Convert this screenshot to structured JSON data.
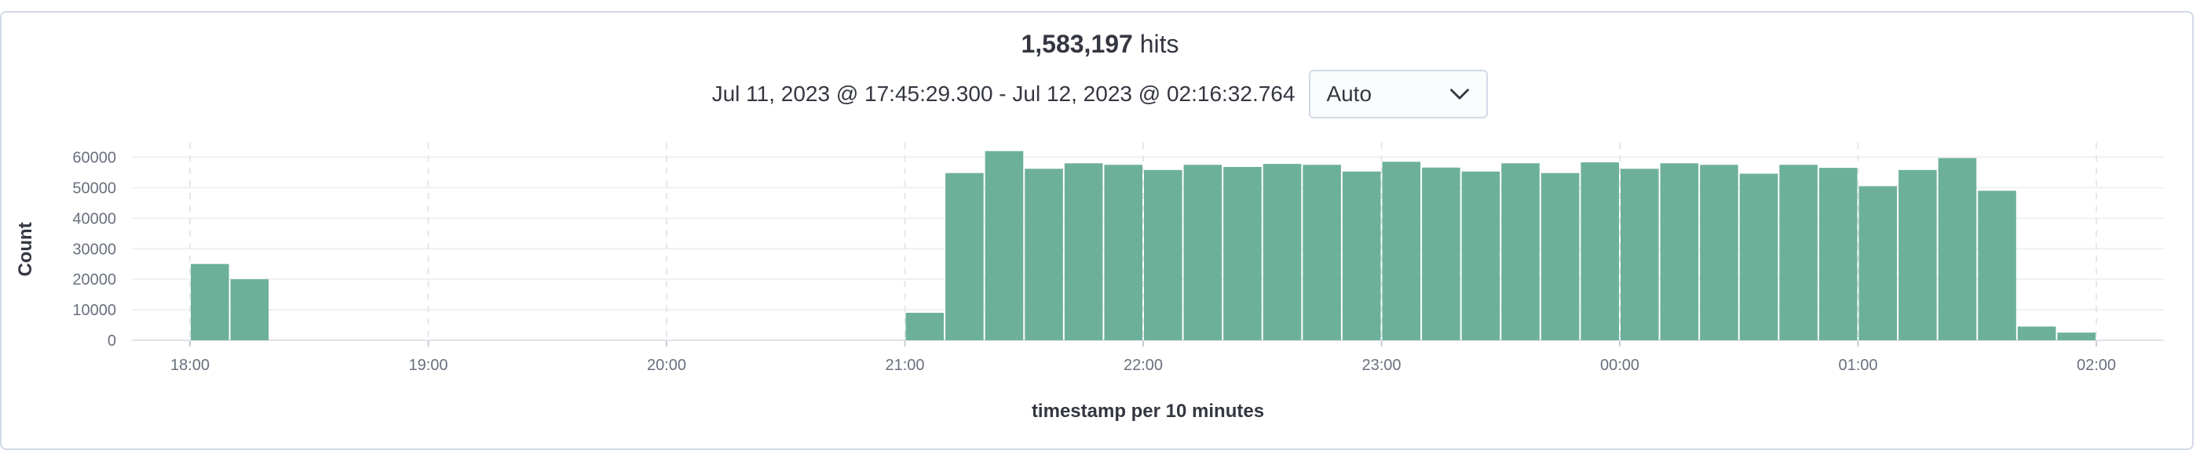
{
  "header": {
    "hits_count": "1,583,197",
    "hits_label": "hits",
    "time_range": "Jul 11, 2023 @ 17:45:29.300 - Jul 12, 2023 @ 02:16:32.764",
    "interval_value": "Auto",
    "interval_icon": "chevron-down-icon"
  },
  "chart_data": {
    "type": "bar",
    "xlabel": "timestamp per 10 minutes",
    "ylabel": "Count",
    "ylim": [
      0,
      60000
    ],
    "y_ticks": [
      0,
      10000,
      20000,
      30000,
      40000,
      50000,
      60000
    ],
    "x_ticks": [
      "18:00",
      "19:00",
      "20:00",
      "21:00",
      "22:00",
      "23:00",
      "00:00",
      "01:00",
      "02:00"
    ],
    "grid": true,
    "bar_color": "#6db09a",
    "bins": [
      {
        "start": "18:00",
        "value": 25000
      },
      {
        "start": "18:10",
        "value": 20000
      },
      {
        "start": "21:00",
        "value": 9000
      },
      {
        "start": "21:10",
        "value": 54800
      },
      {
        "start": "21:20",
        "value": 62000
      },
      {
        "start": "21:30",
        "value": 56200
      },
      {
        "start": "21:40",
        "value": 58000
      },
      {
        "start": "21:50",
        "value": 57500
      },
      {
        "start": "22:00",
        "value": 55800
      },
      {
        "start": "22:10",
        "value": 57500
      },
      {
        "start": "22:20",
        "value": 56800
      },
      {
        "start": "22:30",
        "value": 57800
      },
      {
        "start": "22:40",
        "value": 57500
      },
      {
        "start": "22:50",
        "value": 55300
      },
      {
        "start": "23:00",
        "value": 58500
      },
      {
        "start": "23:10",
        "value": 56600
      },
      {
        "start": "23:20",
        "value": 55300
      },
      {
        "start": "23:30",
        "value": 58000
      },
      {
        "start": "23:40",
        "value": 54800
      },
      {
        "start": "23:50",
        "value": 58300
      },
      {
        "start": "00:00",
        "value": 56200
      },
      {
        "start": "00:10",
        "value": 58000
      },
      {
        "start": "00:20",
        "value": 57500
      },
      {
        "start": "00:30",
        "value": 54600
      },
      {
        "start": "00:40",
        "value": 57500
      },
      {
        "start": "00:50",
        "value": 56500
      },
      {
        "start": "01:00",
        "value": 50500
      },
      {
        "start": "01:10",
        "value": 55800
      },
      {
        "start": "01:20",
        "value": 59700
      },
      {
        "start": "01:30",
        "value": 49000
      },
      {
        "start": "01:40",
        "value": 4500
      },
      {
        "start": "01:50",
        "value": 2500
      }
    ]
  }
}
